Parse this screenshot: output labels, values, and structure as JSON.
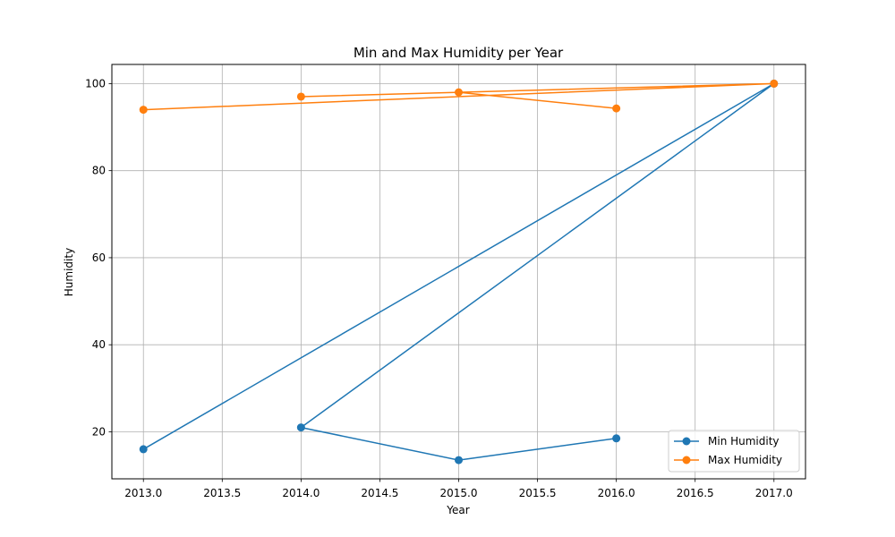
{
  "chart_data": {
    "type": "line",
    "title": "Min and Max Humidity per Year",
    "xlabel": "Year",
    "ylabel": "Humidity",
    "xlim": [
      2012.8,
      2017.2
    ],
    "ylim": [
      9.2,
      104.4
    ],
    "xticks": [
      2013.0,
      2013.5,
      2014.0,
      2014.5,
      2015.0,
      2015.5,
      2016.0,
      2016.5,
      2017.0
    ],
    "xtick_labels": [
      "2013.0",
      "2013.5",
      "2014.0",
      "2014.5",
      "2015.0",
      "2015.5",
      "2016.0",
      "2016.5",
      "2017.0"
    ],
    "yticks": [
      20,
      40,
      60,
      80,
      100
    ],
    "ytick_labels": [
      "20",
      "40",
      "60",
      "80",
      "100"
    ],
    "grid": true,
    "legend_position": "lower-right",
    "series": [
      {
        "name": "Min Humidity",
        "color": "#1f77b4",
        "marker": "circle",
        "x": [
          2013,
          2017,
          2014,
          2015,
          2016
        ],
        "y": [
          16,
          100,
          21,
          13.5,
          18.5
        ]
      },
      {
        "name": "Max Humidity",
        "color": "#ff7f0e",
        "marker": "circle",
        "x": [
          2013,
          2017,
          2014,
          2015,
          2016
        ],
        "y": [
          94,
          100,
          97,
          98,
          94.3
        ]
      }
    ]
  }
}
